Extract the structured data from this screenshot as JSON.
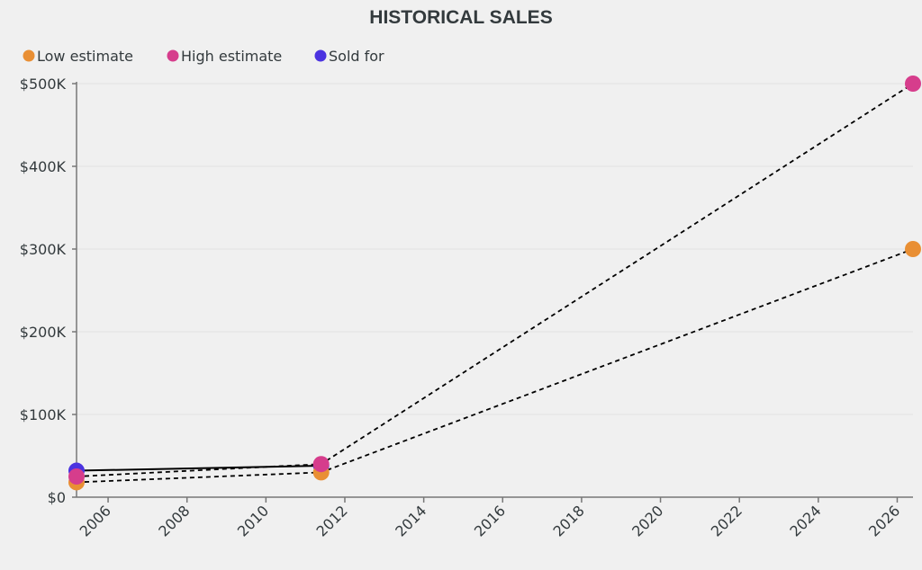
{
  "chart_data": {
    "type": "line",
    "title": "HISTORICAL SALES",
    "xlabel": "",
    "ylabel": "",
    "xlim": [
      2005.2,
      2026.4
    ],
    "ylim": [
      0,
      500000
    ],
    "grid": true,
    "legend_position": "top-left",
    "x_ticks": [
      "2006",
      "2008",
      "2010",
      "2012",
      "2014",
      "2016",
      "2018",
      "2020",
      "2022",
      "2024",
      "2026"
    ],
    "y_ticks": [
      "$0",
      "$100K",
      "$200K",
      "$300K",
      "$400K",
      "$500K"
    ],
    "y_tick_values": [
      0,
      100000,
      200000,
      300000,
      400000,
      500000
    ],
    "series": [
      {
        "name": "Low estimate",
        "color": "#e98f34",
        "line_style": "dashed",
        "points": [
          {
            "x": 2005.2,
            "y": 18000
          },
          {
            "x": 2011.4,
            "y": 30000
          },
          {
            "x": 2026.4,
            "y": 300000
          }
        ]
      },
      {
        "name": "High estimate",
        "color": "#d63d8c",
        "line_style": "dashed",
        "points": [
          {
            "x": 2005.2,
            "y": 25000
          },
          {
            "x": 2011.4,
            "y": 40000
          },
          {
            "x": 2026.4,
            "y": 500000
          }
        ]
      },
      {
        "name": "Sold for",
        "color": "#4b33e0",
        "line_style": "solid",
        "points": [
          {
            "x": 2005.2,
            "y": 32000
          },
          {
            "x": 2011.4,
            "y": 38000
          }
        ]
      }
    ]
  }
}
